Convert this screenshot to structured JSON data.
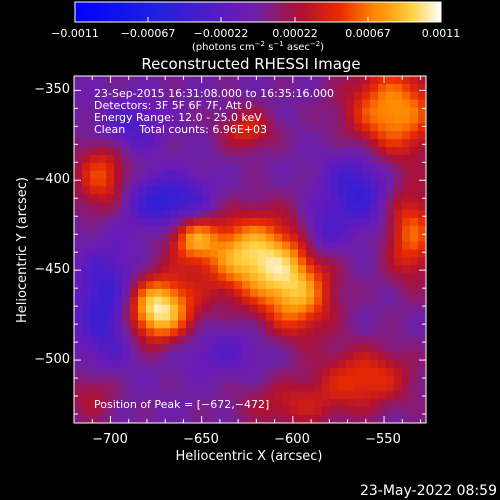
{
  "chart_data": {
    "type": "heatmap",
    "title": "Reconstructed RHESSI Image",
    "xlabel": "Heliocentric X (arcsec)",
    "ylabel": "Heliocentric Y (arcsec)",
    "xlim": [
      -720,
      -527
    ],
    "ylim": [
      -535,
      -342
    ],
    "xticks": [
      -700,
      -650,
      -600,
      -550
    ],
    "yticks": [
      -350,
      -400,
      -450,
      -500
    ],
    "xtick_labels": [
      "−700",
      "−650",
      "−600",
      "−550"
    ],
    "ytick_labels": [
      "−350",
      "−400",
      "−450",
      "−500"
    ],
    "colorbar": {
      "range": [
        -0.0011,
        0.0011
      ],
      "tick_labels": [
        "−0.0011",
        "−0.00067",
        "−0.00022",
        "0.00022",
        "0.00067",
        "0.0011"
      ],
      "label_main": "(photons cm",
      "label_exp1": "−2",
      "label_mid": " s",
      "label_exp2": "−1",
      "label_mid2": " asec",
      "label_exp3": "−2",
      "label_end": ")"
    },
    "annotations": {
      "time": "23-Sep-2015 16:31:08.000 to 16:35:16.000",
      "detectors": "Detectors: 3F 5F 6F 7F, Att 0",
      "energy": "Energy Range: 12.0 - 25.0 keV",
      "clean": "Clean    Total counts: 6.96E+03",
      "peak": "Position of Peak = [−672,−472]"
    },
    "sources": [
      {
        "x": -675,
        "y": -472,
        "amp": 1.0,
        "sx": 14,
        "sy": 13
      },
      {
        "x": -622,
        "y": -442,
        "amp": 0.85,
        "sx": 20,
        "sy": 16
      },
      {
        "x": -598,
        "y": -465,
        "amp": 0.65,
        "sx": 14,
        "sy": 16
      },
      {
        "x": -655,
        "y": -432,
        "amp": 0.55,
        "sx": 9,
        "sy": 9
      },
      {
        "x": -545,
        "y": -362,
        "amp": 0.7,
        "sx": 18,
        "sy": 18
      },
      {
        "x": -705,
        "y": -398,
        "amp": 0.5,
        "sx": 10,
        "sy": 14
      },
      {
        "x": -625,
        "y": -372,
        "amp": 0.4,
        "sx": 10,
        "sy": 8
      },
      {
        "x": -535,
        "y": -430,
        "amp": 0.55,
        "sx": 10,
        "sy": 18
      },
      {
        "x": -560,
        "y": -510,
        "amp": 0.45,
        "sx": 18,
        "sy": 12
      },
      {
        "x": -600,
        "y": -525,
        "amp": 0.3,
        "sx": 20,
        "sy": 10
      },
      {
        "x": -710,
        "y": -520,
        "amp": 0.25,
        "sx": 10,
        "sy": 10
      },
      {
        "x": -700,
        "y": -470,
        "amp": -0.55,
        "sx": 12,
        "sy": 20
      },
      {
        "x": -668,
        "y": -412,
        "amp": -0.5,
        "sx": 16,
        "sy": 10
      },
      {
        "x": -690,
        "y": -370,
        "amp": -0.3,
        "sx": 12,
        "sy": 10
      },
      {
        "x": -565,
        "y": -405,
        "amp": -0.45,
        "sx": 12,
        "sy": 16
      },
      {
        "x": -585,
        "y": -430,
        "amp": -0.3,
        "sx": 8,
        "sy": 10
      },
      {
        "x": -640,
        "y": -495,
        "amp": -0.2,
        "sx": 20,
        "sy": 10
      }
    ]
  },
  "footer": {
    "timestamp": "23-May-2022 08:59"
  },
  "colors": {
    "background": "#000000",
    "foreground": "#ffffff"
  }
}
